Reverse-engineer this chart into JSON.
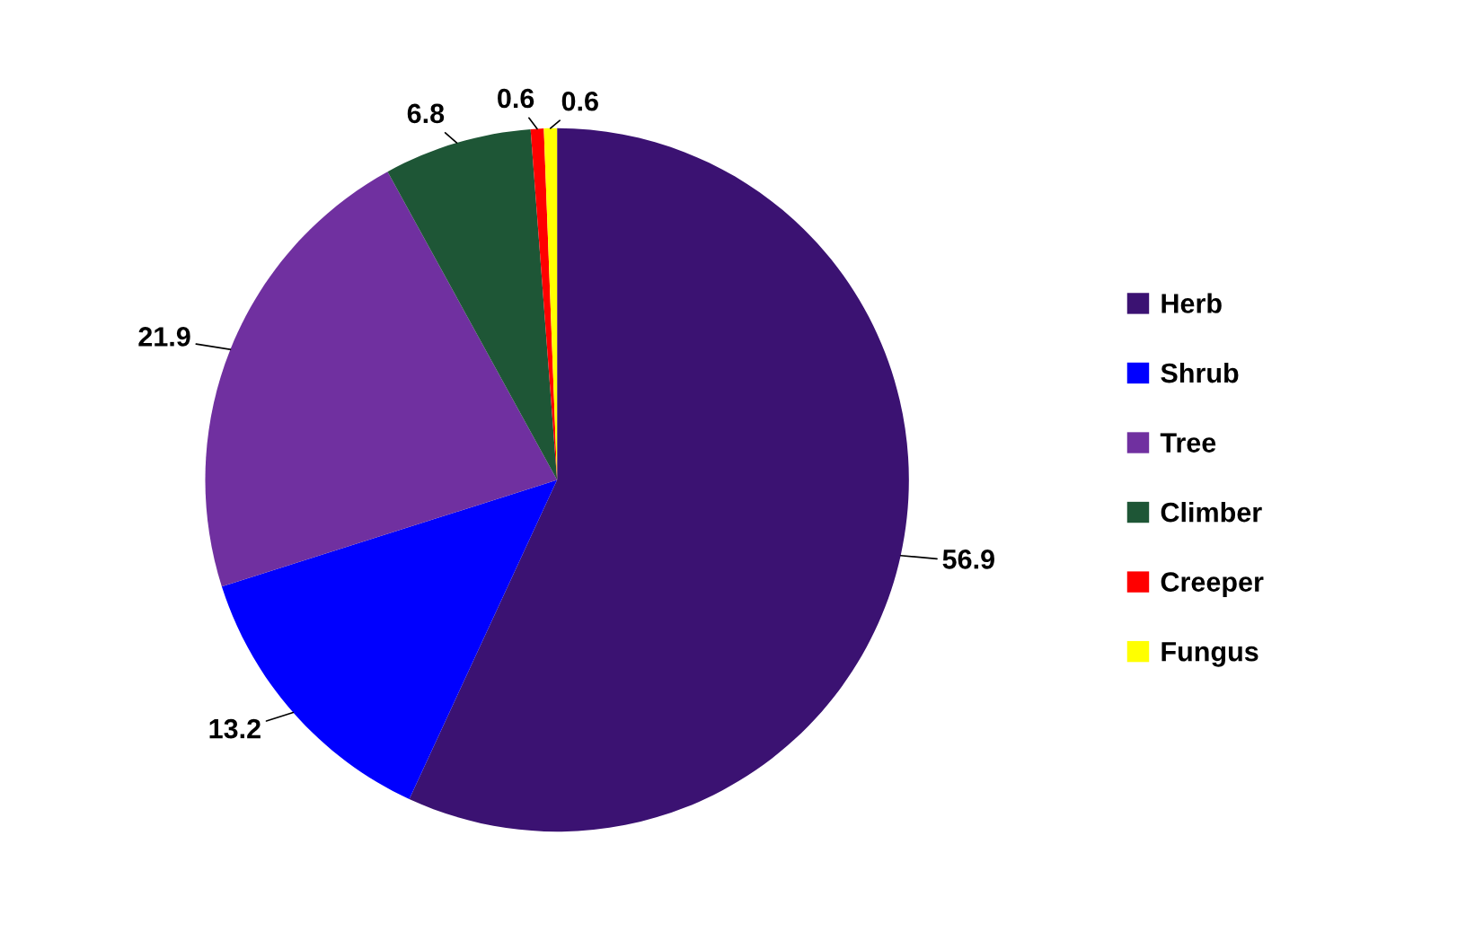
{
  "chart_data": {
    "type": "pie",
    "categories": [
      "Herb",
      "Shrub",
      "Tree",
      "Climber",
      "Creeper",
      "Fungus"
    ],
    "values": [
      56.9,
      13.2,
      21.9,
      6.8,
      0.6,
      0.6
    ],
    "colors": [
      "#3b1272",
      "#0000ff",
      "#7030a0",
      "#1e5636",
      "#ff0000",
      "#ffff00"
    ],
    "data_labels": true,
    "legend": "right"
  }
}
